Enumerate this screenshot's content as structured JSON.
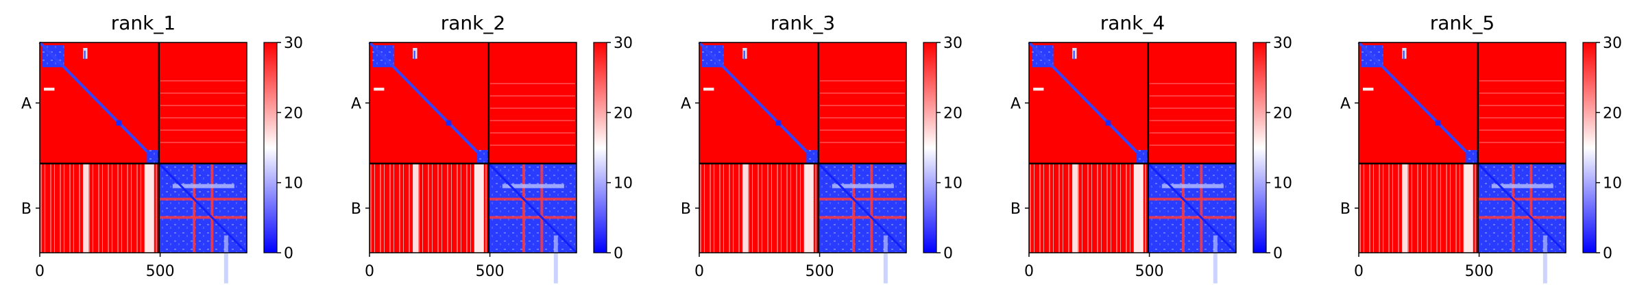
{
  "colors": {
    "low": "#0000ff",
    "mid": "#ffffff",
    "high": "#ff0000"
  },
  "chart_data": [
    {
      "type": "heatmap",
      "title": "rank_1",
      "xticks": [
        0,
        500
      ],
      "yticks": [
        "A",
        "B"
      ],
      "colorbar_ticks": [
        0,
        10,
        20,
        30
      ],
      "color_range": [
        0,
        30
      ],
      "colormap": "bwr",
      "chains": [
        {
          "name": "A",
          "length": 495
        },
        {
          "name": "B",
          "length": 365
        }
      ]
    },
    {
      "type": "heatmap",
      "title": "rank_2",
      "xticks": [
        0,
        500
      ],
      "yticks": [
        "A",
        "B"
      ],
      "colorbar_ticks": [
        0,
        10,
        20,
        30
      ],
      "color_range": [
        0,
        30
      ],
      "colormap": "bwr",
      "chains": [
        {
          "name": "A",
          "length": 495
        },
        {
          "name": "B",
          "length": 365
        }
      ]
    },
    {
      "type": "heatmap",
      "title": "rank_3",
      "xticks": [
        0,
        500
      ],
      "yticks": [
        "A",
        "B"
      ],
      "colorbar_ticks": [
        0,
        10,
        20,
        30
      ],
      "color_range": [
        0,
        30
      ],
      "colormap": "bwr",
      "chains": [
        {
          "name": "A",
          "length": 495
        },
        {
          "name": "B",
          "length": 365
        }
      ]
    },
    {
      "type": "heatmap",
      "title": "rank_4",
      "xticks": [
        0,
        500
      ],
      "yticks": [
        "A",
        "B"
      ],
      "colorbar_ticks": [
        0,
        10,
        20,
        30
      ],
      "color_range": [
        0,
        30
      ],
      "colormap": "bwr",
      "chains": [
        {
          "name": "A",
          "length": 495
        },
        {
          "name": "B",
          "length": 365
        }
      ]
    },
    {
      "type": "heatmap",
      "title": "rank_5",
      "xticks": [
        0,
        500
      ],
      "yticks": [
        "A",
        "B"
      ],
      "colorbar_ticks": [
        0,
        10,
        20,
        30
      ],
      "color_range": [
        0,
        30
      ],
      "colormap": "bwr",
      "chains": [
        {
          "name": "A",
          "length": 495
        },
        {
          "name": "B",
          "length": 365
        }
      ]
    }
  ]
}
